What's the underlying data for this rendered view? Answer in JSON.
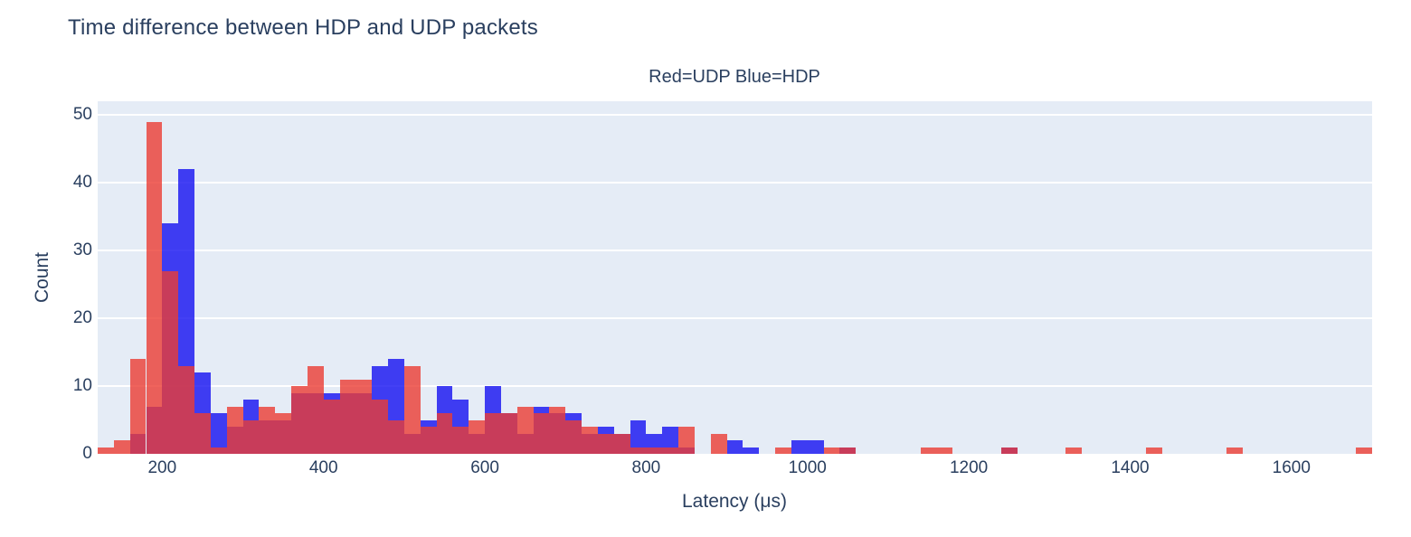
{
  "chart_data": {
    "type": "histogram",
    "mode": "overlay",
    "title": "Time difference between HDP and UDP packets",
    "subtitle": "Red=UDP Blue=HDP",
    "xlabel": "Latency (μs)",
    "ylabel": "Count",
    "x_ticks": [
      200,
      400,
      600,
      800,
      1000,
      1200,
      1400,
      1600
    ],
    "y_ticks": [
      0,
      10,
      20,
      30,
      40,
      50
    ],
    "x_range": [
      120,
      1700
    ],
    "y_range": [
      0,
      52
    ],
    "bin_width": 20,
    "grid": "horizontal-only",
    "legend_position": "none",
    "colors": {
      "plot_background": "#e5ecf6",
      "page_background": "#ffffff",
      "gridline": "#ffffff",
      "text": "#2a3f5f",
      "udp_red_fill": "rgba(235,60,51,0.8)",
      "hdp_blue_fill": "rgba(20,16,241,0.8)",
      "overlap_observed": "#c23a5c"
    },
    "series": [
      {
        "name": "UDP",
        "label_in_subtitle": "Red=UDP",
        "color": "rgba(235,60,51,0.8)",
        "bins": [
          [
            120,
            1
          ],
          [
            140,
            2
          ],
          [
            160,
            14
          ],
          [
            180,
            49
          ],
          [
            200,
            27
          ],
          [
            220,
            13
          ],
          [
            240,
            6
          ],
          [
            260,
            1
          ],
          [
            280,
            7
          ],
          [
            300,
            5
          ],
          [
            320,
            7
          ],
          [
            340,
            6
          ],
          [
            360,
            10
          ],
          [
            380,
            13
          ],
          [
            400,
            8
          ],
          [
            420,
            11
          ],
          [
            440,
            11
          ],
          [
            460,
            8
          ],
          [
            480,
            5
          ],
          [
            500,
            13
          ],
          [
            520,
            4
          ],
          [
            540,
            6
          ],
          [
            560,
            4
          ],
          [
            580,
            5
          ],
          [
            600,
            6
          ],
          [
            620,
            6
          ],
          [
            640,
            7
          ],
          [
            660,
            6
          ],
          [
            680,
            7
          ],
          [
            700,
            5
          ],
          [
            720,
            4
          ],
          [
            740,
            3
          ],
          [
            760,
            3
          ],
          [
            780,
            1
          ],
          [
            800,
            1
          ],
          [
            820,
            1
          ],
          [
            840,
            4
          ],
          [
            880,
            3
          ],
          [
            960,
            1
          ],
          [
            1020,
            1
          ],
          [
            1040,
            1
          ],
          [
            1140,
            1
          ],
          [
            1160,
            1
          ],
          [
            1240,
            1
          ],
          [
            1320,
            1
          ],
          [
            1420,
            1
          ],
          [
            1520,
            1
          ],
          [
            1680,
            1
          ]
        ]
      },
      {
        "name": "HDP",
        "label_in_subtitle": "Blue=HDP",
        "color": "rgba(20,16,241,0.8)",
        "bins": [
          [
            160,
            3
          ],
          [
            180,
            7
          ],
          [
            200,
            34
          ],
          [
            220,
            42
          ],
          [
            240,
            12
          ],
          [
            260,
            6
          ],
          [
            280,
            4
          ],
          [
            300,
            8
          ],
          [
            320,
            5
          ],
          [
            340,
            5
          ],
          [
            360,
            9
          ],
          [
            380,
            9
          ],
          [
            400,
            9
          ],
          [
            420,
            9
          ],
          [
            440,
            9
          ],
          [
            460,
            13
          ],
          [
            480,
            14
          ],
          [
            500,
            3
          ],
          [
            520,
            5
          ],
          [
            540,
            10
          ],
          [
            560,
            8
          ],
          [
            580,
            3
          ],
          [
            600,
            10
          ],
          [
            620,
            6
          ],
          [
            640,
            3
          ],
          [
            660,
            7
          ],
          [
            680,
            6
          ],
          [
            700,
            6
          ],
          [
            720,
            3
          ],
          [
            740,
            4
          ],
          [
            760,
            3
          ],
          [
            780,
            5
          ],
          [
            800,
            3
          ],
          [
            820,
            4
          ],
          [
            840,
            1
          ],
          [
            900,
            2
          ],
          [
            920,
            1
          ],
          [
            980,
            2
          ],
          [
            1000,
            2
          ],
          [
            1040,
            1
          ],
          [
            1240,
            1
          ]
        ]
      }
    ]
  }
}
